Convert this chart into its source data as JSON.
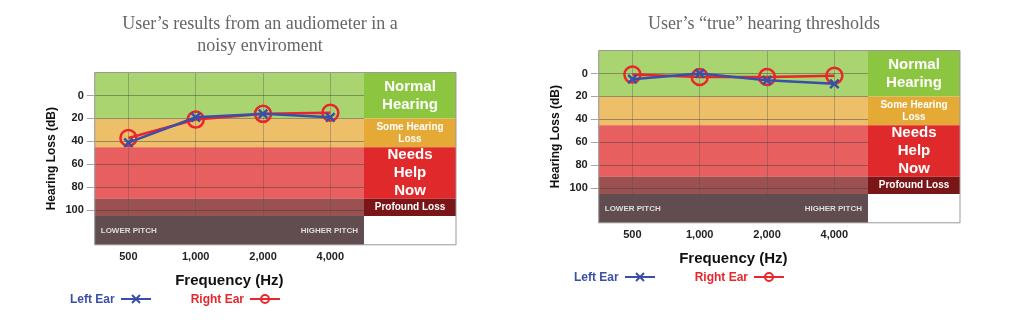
{
  "chart_data": [
    {
      "type": "line",
      "title": "User’s results from an audiometer in a noisy enviroment",
      "xlabel": "Frequency (Hz)",
      "ylabel": "Hearing Loss (dB)",
      "categories": [
        "500",
        "1,000",
        "2,000",
        "4,000"
      ],
      "series": [
        {
          "name": "Left Ear",
          "color": "#3a4fa8",
          "values": [
            41,
            19,
            16,
            19
          ],
          "marker": "cross"
        },
        {
          "name": "Right Ear",
          "color": "#e8262b",
          "values": [
            37,
            21,
            16,
            15
          ],
          "marker": "circle"
        }
      ],
      "ylim": [
        130,
        -20
      ],
      "yticks": [
        0,
        20,
        40,
        60,
        80,
        100
      ],
      "grid": true,
      "legend": "bottom",
      "bands": [
        {
          "axis": "y",
          "from": -20,
          "to": 20,
          "label": "Normal Hearing",
          "color": "#8cc540"
        },
        {
          "axis": "y",
          "from": 20,
          "to": 45,
          "label": "Some Hearing Loss",
          "color": "#e5aa35"
        },
        {
          "axis": "y",
          "from": 45,
          "to": 90,
          "label": "Needs Help Now",
          "color": "#e0292b"
        },
        {
          "axis": "y",
          "from": 90,
          "to": 105,
          "label": "Profound Loss",
          "color": "#7a1518"
        },
        {
          "axis": "y",
          "from": 105,
          "to": 130,
          "color": "#2c1214"
        }
      ],
      "annotations": [
        "LOWER PITCH",
        "HIGHER PITCH"
      ]
    },
    {
      "type": "line",
      "title": "User’s “true” hearing thresholds",
      "xlabel": "Frequency (Hz)",
      "ylabel": "Hearing Loss (dB)",
      "categories": [
        "500",
        "1,000",
        "2,000",
        "4,000"
      ],
      "series": [
        {
          "name": "Left Ear",
          "color": "#3a4fa8",
          "values": [
            5,
            0,
            6,
            9
          ],
          "marker": "cross"
        },
        {
          "name": "Right Ear",
          "color": "#e8262b",
          "values": [
            1,
            3,
            3,
            2
          ],
          "marker": "circle"
        }
      ],
      "ylim": [
        130,
        -20
      ],
      "yticks": [
        0,
        20,
        40,
        60,
        80,
        100
      ],
      "grid": true,
      "legend": "bottom",
      "bands": [
        {
          "axis": "y",
          "from": -20,
          "to": 20,
          "label": "Normal Hearing",
          "color": "#8cc540"
        },
        {
          "axis": "y",
          "from": 20,
          "to": 45,
          "label": "Some Hearing Loss",
          "color": "#e5aa35"
        },
        {
          "axis": "y",
          "from": 45,
          "to": 90,
          "label": "Needs Help Now",
          "color": "#e0292b"
        },
        {
          "axis": "y",
          "from": 90,
          "to": 105,
          "label": "Profound Loss",
          "color": "#7a1518"
        },
        {
          "axis": "y",
          "from": 105,
          "to": 130,
          "color": "#2c1214"
        }
      ],
      "annotations": [
        "LOWER PITCH",
        "HIGHER PITCH"
      ]
    }
  ]
}
